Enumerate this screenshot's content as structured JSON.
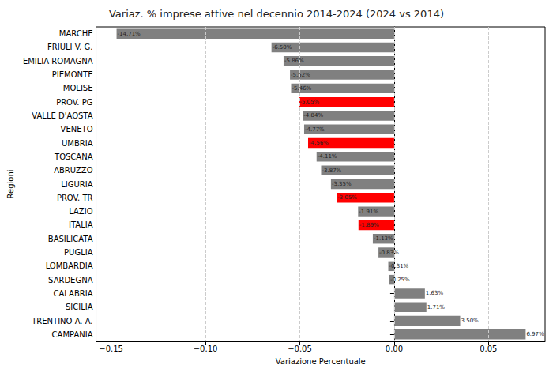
{
  "chart_data": {
    "type": "bar",
    "orientation": "horizontal",
    "title": "Variaz. % imprese attive nel decennio 2014-2024 (2024 vs 2014)",
    "x_label": "Variazione Percentuale",
    "y_label": "Regioni",
    "categories": [
      "MARCHE",
      "FRIULI V. G.",
      "EMILIA ROMAGNA",
      "PIEMONTE",
      "MOLISE",
      "PROV. PG",
      "VALLE D'AOSTA",
      "VENETO",
      "UMBRIA",
      "TOSCANA",
      "ABRUZZO",
      "LIGURIA",
      "PROV. TR",
      "LAZIO",
      "ITALIA",
      "BASILICATA",
      "PUGLIA",
      "LOMBARDIA",
      "SARDEGNA",
      "CALABRIA",
      "SICILIA",
      "TRENTINO A. A.",
      "CAMPANIA"
    ],
    "values": [
      -0.1471,
      -0.065,
      -0.0586,
      -0.0552,
      -0.0546,
      -0.0505,
      -0.0484,
      -0.0477,
      -0.0456,
      -0.0411,
      -0.0387,
      -0.0335,
      -0.0305,
      -0.0191,
      -0.0189,
      -0.0113,
      -0.0083,
      -0.0031,
      -0.0025,
      0.0163,
      0.0171,
      0.035,
      0.0697
    ],
    "value_labels": [
      "-14.71%",
      "-6.50%",
      "-5.86%",
      "-5.52%",
      "-5.46%",
      "-5.05%",
      "-4.84%",
      "-4.77%",
      "-4.56%",
      "-4.11%",
      "-3.87%",
      "-3.35%",
      "-3.05%",
      "-1.91%",
      "-1.89%",
      "-1.13%",
      "-0.83%",
      "-0.31%",
      "-0.25%",
      "1.63%",
      "1.71%",
      "3.50%",
      "6.97%"
    ],
    "colors": [
      "#808080",
      "#808080",
      "#808080",
      "#808080",
      "#808080",
      "#ff0000",
      "#808080",
      "#808080",
      "#ff0000",
      "#808080",
      "#808080",
      "#808080",
      "#ff0000",
      "#808080",
      "#ff0000",
      "#808080",
      "#808080",
      "#808080",
      "#808080",
      "#808080",
      "#808080",
      "#808080",
      "#808080"
    ],
    "xlim": [
      -0.158,
      0.08
    ],
    "xticks": [
      {
        "value": -0.15,
        "label": "−0.15"
      },
      {
        "value": -0.1,
        "label": "−0.10"
      },
      {
        "value": -0.05,
        "label": "−0.05"
      },
      {
        "value": 0,
        "label": "0.00"
      },
      {
        "value": 0.05,
        "label": "0.05"
      }
    ],
    "grid": true,
    "data_labels": true
  }
}
